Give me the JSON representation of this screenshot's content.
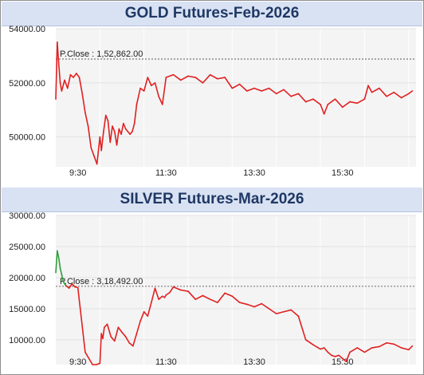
{
  "chart_data": [
    {
      "type": "line",
      "title": "GOLD Futures-Feb-2026",
      "ylim": [
        48900,
        54000
      ],
      "yticks": [
        50000,
        52000,
        54000
      ],
      "ytick_labels": [
        "50000.00",
        "52000.00",
        "54000.00"
      ],
      "xticks": [
        "9:30",
        "11:30",
        "13:30",
        "15:30"
      ],
      "xtick_times": [
        "09:30",
        "11:30",
        "13:30",
        "15:30"
      ],
      "x_range": [
        "09:00",
        "17:10"
      ],
      "grid": true,
      "reference_line": {
        "label": "P.Close : 1,52,862.00",
        "value": 52880
      },
      "series": [
        {
          "color": "#e02020",
          "up_color": "#2e9e3a",
          "x": [
            "09:00",
            "09:02",
            "09:04",
            "09:06",
            "09:08",
            "09:12",
            "09:16",
            "09:20",
            "09:24",
            "09:28",
            "09:32",
            "09:36",
            "09:40",
            "09:44",
            "09:48",
            "09:52",
            "09:56",
            "10:00",
            "10:02",
            "10:05",
            "10:08",
            "10:11",
            "10:14",
            "10:17",
            "10:20",
            "10:23",
            "10:26",
            "10:29",
            "10:32",
            "10:35",
            "10:38",
            "10:41",
            "10:44",
            "10:47",
            "10:50",
            "10:55",
            "11:00",
            "11:05",
            "11:10",
            "11:15",
            "11:20",
            "11:25",
            "11:30",
            "11:40",
            "11:50",
            "12:00",
            "12:10",
            "12:20",
            "12:30",
            "12:40",
            "12:50",
            "13:00",
            "13:10",
            "13:20",
            "13:30",
            "13:40",
            "13:50",
            "14:00",
            "14:10",
            "14:20",
            "14:30",
            "14:40",
            "14:50",
            "15:00",
            "15:05",
            "15:10",
            "15:20",
            "15:30",
            "15:40",
            "15:50",
            "16:00",
            "16:05",
            "16:10",
            "16:20",
            "16:30",
            "16:40",
            "16:50",
            "17:00",
            "17:05"
          ],
          "y": [
            51400,
            53500,
            52700,
            52000,
            51700,
            52100,
            51800,
            52300,
            52200,
            52350,
            52200,
            51600,
            50900,
            50400,
            49600,
            49300,
            49000,
            50000,
            49500,
            50200,
            50800,
            50600,
            49800,
            50400,
            50200,
            49700,
            50300,
            50100,
            50500,
            50300,
            50200,
            50100,
            50200,
            50500,
            51200,
            51800,
            51700,
            52200,
            51900,
            52000,
            51500,
            51200,
            52200,
            52300,
            52100,
            52250,
            52200,
            52000,
            52300,
            52150,
            52200,
            51800,
            51950,
            51700,
            51800,
            51700,
            51800,
            51600,
            51750,
            51500,
            51600,
            51300,
            51400,
            51200,
            50850,
            51200,
            51400,
            51100,
            51300,
            51250,
            51400,
            51900,
            51650,
            51800,
            51500,
            51650,
            51450,
            51600,
            51700
          ]
        }
      ]
    },
    {
      "type": "line",
      "title": "SILVER Futures-Mar-2026",
      "ylim": [
        6000,
        30000
      ],
      "yticks": [
        10000,
        15000,
        20000,
        25000,
        30000
      ],
      "ytick_labels": [
        "10000.00",
        "15000.00",
        "20000.00",
        "25000.00",
        "30000.00"
      ],
      "xticks": [
        "9:30",
        "11:30",
        "13:30",
        "15:30"
      ],
      "xtick_times": [
        "09:30",
        "11:30",
        "13:30",
        "15:30"
      ],
      "x_range": [
        "09:00",
        "17:10"
      ],
      "grid": true,
      "reference_line": {
        "label": "P.Close : 3,18,492.00",
        "value": 18600
      },
      "series": [
        {
          "color": "#e02020",
          "up_color": "#2e9e3a",
          "x": [
            "09:00",
            "09:02",
            "09:04",
            "09:06",
            "09:08",
            "09:10",
            "09:12",
            "09:14",
            "09:18",
            "09:22",
            "09:26",
            "09:30",
            "09:40",
            "09:50",
            "09:55",
            "10:00",
            "10:02",
            "10:04",
            "10:06",
            "10:10",
            "10:15",
            "10:20",
            "10:25",
            "10:30",
            "10:35",
            "10:40",
            "10:45",
            "10:50",
            "10:55",
            "11:00",
            "11:05",
            "11:10",
            "11:15",
            "11:20",
            "11:25",
            "11:28",
            "11:30",
            "11:35",
            "11:40",
            "11:50",
            "12:00",
            "12:10",
            "12:20",
            "12:30",
            "12:40",
            "12:50",
            "13:00",
            "13:10",
            "13:20",
            "13:30",
            "13:40",
            "13:50",
            "14:00",
            "14:10",
            "14:20",
            "14:30",
            "14:40",
            "14:50",
            "15:00",
            "15:05",
            "15:10",
            "15:15",
            "15:20",
            "15:25",
            "15:30",
            "15:35",
            "15:40",
            "15:50",
            "16:00",
            "16:10",
            "16:20",
            "16:30",
            "16:40",
            "16:50",
            "17:00",
            "17:05"
          ],
          "y": [
            20800,
            24300,
            23200,
            21500,
            20500,
            19400,
            19000,
            18700,
            18300,
            19000,
            18500,
            18400,
            8000,
            6000,
            6000,
            6200,
            11000,
            10200,
            12000,
            12500,
            10500,
            9800,
            12000,
            11200,
            10500,
            9500,
            9000,
            11000,
            13000,
            14500,
            13800,
            16000,
            18300,
            16500,
            17000,
            16800,
            17200,
            17600,
            18500,
            18000,
            17800,
            16500,
            17100,
            16500,
            16000,
            17500,
            17000,
            16000,
            15700,
            15300,
            15800,
            15000,
            14200,
            14500,
            14800,
            13800,
            10000,
            9200,
            8500,
            8700,
            8000,
            7500,
            7300,
            7500,
            7000,
            6500,
            8000,
            8700,
            8000,
            8700,
            8900,
            9500,
            9300,
            8700,
            8400,
            9000
          ]
        }
      ]
    }
  ]
}
